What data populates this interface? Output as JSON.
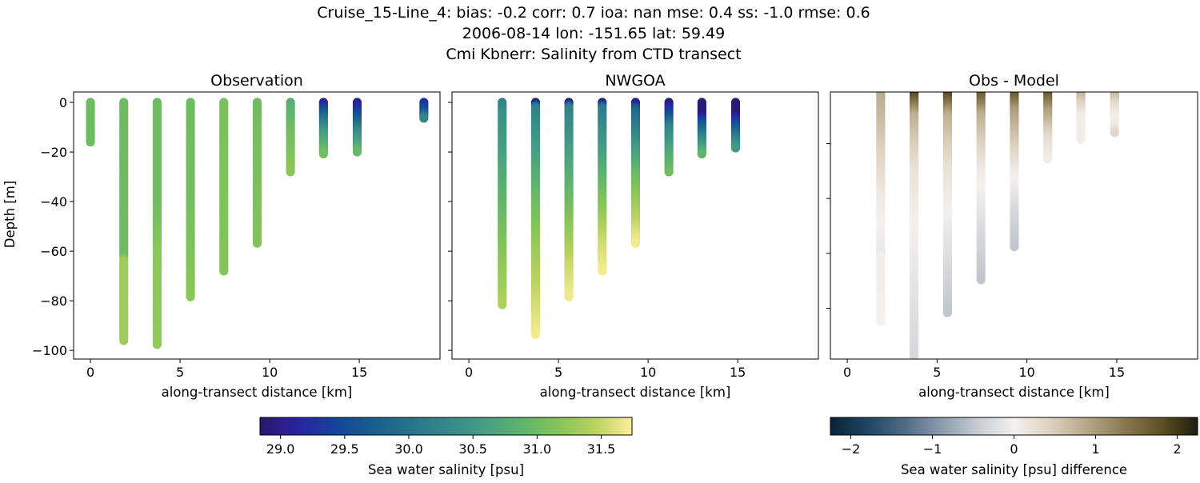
{
  "title_lines": [
    "Cruise_15-Line_4: bias: -0.2  corr: 0.7  ioa: nan  mse: 0.4  ss: -1.0  rmse: 0.6",
    "2006-08-14 lon: -151.65 lat: 59.49",
    "Cmi Kbnerr: Salinity from CTD transect"
  ],
  "chart_data": [
    {
      "type": "scatter",
      "title": "Observation",
      "xlabel": "along-transect distance [km]",
      "ylabel": "Depth [m]",
      "xlim": [
        -0.94,
        19.5
      ],
      "ylim": [
        -103.5,
        4.2
      ],
      "xticks": [
        0,
        5,
        10,
        15
      ],
      "yticks": [
        0,
        -20,
        -40,
        -60,
        -80,
        -100
      ],
      "show_ytick_labels": true,
      "colormap": "haline",
      "clim": [
        28.84,
        31.74
      ],
      "profiles": [
        {
          "x": 0.0,
          "depth_salinity": [
            [
              0,
              31.0
            ],
            [
              -16,
              31.0
            ]
          ]
        },
        {
          "x": 1.86,
          "depth_salinity": [
            [
              0,
              31.0
            ],
            [
              -62,
              31.0
            ],
            [
              -64,
              31.3
            ],
            [
              -96,
              31.3
            ]
          ]
        },
        {
          "x": 3.72,
          "depth_salinity": [
            [
              0,
              31.0
            ],
            [
              -40,
              31.0
            ],
            [
              -60,
              31.2
            ],
            [
              -98,
              31.25
            ]
          ]
        },
        {
          "x": 5.58,
          "depth_salinity": [
            [
              0,
              31.0
            ],
            [
              -40,
              31.05
            ],
            [
              -79,
              31.2
            ]
          ]
        },
        {
          "x": 7.44,
          "depth_salinity": [
            [
              0,
              31.1
            ],
            [
              -68,
              31.15
            ]
          ]
        },
        {
          "x": 9.3,
          "depth_salinity": [
            [
              0,
              31.0
            ],
            [
              -10,
              31.05
            ],
            [
              -57,
              31.15
            ]
          ]
        },
        {
          "x": 11.16,
          "depth_salinity": [
            [
              0,
              30.8
            ],
            [
              -10,
              31.0
            ],
            [
              -28,
              31.2
            ]
          ]
        },
        {
          "x": 13.0,
          "depth_salinity": [
            [
              0,
              29.0
            ],
            [
              -5,
              29.8
            ],
            [
              -12,
              30.5
            ],
            [
              -21,
              31.05
            ]
          ]
        },
        {
          "x": 14.88,
          "depth_salinity": [
            [
              0,
              29.0
            ],
            [
              -5,
              29.5
            ],
            [
              -12,
              30.3
            ],
            [
              -20,
              30.95
            ]
          ]
        },
        {
          "x": 18.6,
          "depth_salinity": [
            [
              0,
              29.2
            ],
            [
              -3,
              29.5
            ],
            [
              -6.5,
              30.3
            ]
          ]
        }
      ]
    },
    {
      "type": "scatter",
      "title": "NWGOA",
      "xlabel": "along-transect distance [km]",
      "xlim": [
        -0.94,
        19.5
      ],
      "ylim": [
        -103.5,
        4.2
      ],
      "xticks": [
        0,
        5,
        10,
        15
      ],
      "yticks": [
        0,
        -20,
        -40,
        -60,
        -80,
        -100
      ],
      "show_ytick_labels": false,
      "colormap": "haline",
      "clim": [
        28.84,
        31.74
      ],
      "profiles": [
        {
          "x": 1.86,
          "depth_salinity": [
            [
              0,
              30.2
            ],
            [
              -5,
              30.4
            ],
            [
              -20,
              30.6
            ],
            [
              -40,
              30.9
            ],
            [
              -55,
              31.1
            ],
            [
              -82,
              31.4
            ]
          ]
        },
        {
          "x": 3.72,
          "depth_salinity": [
            [
              0,
              28.9
            ],
            [
              -2,
              30.2
            ],
            [
              -20,
              30.6
            ],
            [
              -40,
              31.0
            ],
            [
              -60,
              31.3
            ],
            [
              -94,
              31.7
            ]
          ]
        },
        {
          "x": 5.58,
          "depth_salinity": [
            [
              0,
              28.9
            ],
            [
              -2,
              30.2
            ],
            [
              -20,
              30.6
            ],
            [
              -40,
              31.0
            ],
            [
              -65,
              31.5
            ],
            [
              -79,
              31.7
            ]
          ]
        },
        {
          "x": 7.44,
          "depth_salinity": [
            [
              0,
              28.9
            ],
            [
              -2,
              30.1
            ],
            [
              -20,
              30.6
            ],
            [
              -35,
              31.0
            ],
            [
              -55,
              31.5
            ],
            [
              -68,
              31.7
            ]
          ]
        },
        {
          "x": 9.3,
          "depth_salinity": [
            [
              0,
              28.9
            ],
            [
              -3,
              29.8
            ],
            [
              -18,
              30.5
            ],
            [
              -30,
              31.0
            ],
            [
              -45,
              31.4
            ],
            [
              -57,
              31.7
            ]
          ]
        },
        {
          "x": 11.16,
          "depth_salinity": [
            [
              0,
              28.9
            ],
            [
              -5,
              29.5
            ],
            [
              -10,
              30.2
            ],
            [
              -20,
              30.7
            ],
            [
              -28,
              31.0
            ]
          ]
        },
        {
          "x": 13.0,
          "depth_salinity": [
            [
              0,
              28.9
            ],
            [
              -5,
              28.9
            ],
            [
              -8,
              29.5
            ],
            [
              -14,
              30.2
            ],
            [
              -21,
              30.9
            ]
          ]
        },
        {
          "x": 14.88,
          "depth_salinity": [
            [
              0,
              28.9
            ],
            [
              -5,
              28.9
            ],
            [
              -8,
              29.4
            ],
            [
              -13,
              30.0
            ],
            [
              -19,
              30.6
            ]
          ]
        }
      ]
    },
    {
      "type": "scatter",
      "title": "Obs - Model",
      "xlabel": "along-transect distance [km]",
      "xlim": [
        -0.94,
        19.5
      ],
      "ylim": [
        -98.5,
        -1.2
      ],
      "xticks": [
        0,
        5,
        10,
        15
      ],
      "yticks": [
        -20,
        -40,
        -60,
        -80
      ],
      "show_ytick_labels": false,
      "colormap": "diff",
      "clim": [
        -2.25,
        2.25
      ],
      "profiles": [
        {
          "x": 1.86,
          "depth_salinity": [
            [
              0,
              0.9
            ],
            [
              -20,
              0.5
            ],
            [
              -40,
              0.1
            ],
            [
              -60,
              -0.1
            ],
            [
              -62,
              0.05
            ],
            [
              -85,
              0.0
            ]
          ]
        },
        {
          "x": 3.72,
          "depth_salinity": [
            [
              0,
              2.2
            ],
            [
              -10,
              0.8
            ],
            [
              -30,
              0.2
            ],
            [
              -50,
              0.0
            ],
            [
              -98,
              -0.3
            ]
          ]
        },
        {
          "x": 5.58,
          "depth_salinity": [
            [
              0,
              2.2
            ],
            [
              -10,
              0.8
            ],
            [
              -30,
              0.2
            ],
            [
              -60,
              -0.2
            ],
            [
              -82,
              -0.5
            ]
          ]
        },
        {
          "x": 7.44,
          "depth_salinity": [
            [
              0,
              2.0
            ],
            [
              -10,
              0.8
            ],
            [
              -30,
              0.1
            ],
            [
              -55,
              -0.3
            ],
            [
              -70,
              -0.5
            ]
          ]
        },
        {
          "x": 9.3,
          "depth_salinity": [
            [
              0,
              2.0
            ],
            [
              -8,
              1.0
            ],
            [
              -30,
              0.1
            ],
            [
              -45,
              -0.3
            ],
            [
              -58,
              -0.5
            ]
          ]
        },
        {
          "x": 11.16,
          "depth_salinity": [
            [
              0,
              2.0
            ],
            [
              -8,
              1.0
            ],
            [
              -18,
              0.3
            ],
            [
              -26,
              0.05
            ]
          ]
        },
        {
          "x": 13.0,
          "depth_salinity": [
            [
              0,
              1.0
            ],
            [
              -5,
              0.5
            ],
            [
              -10,
              0.05
            ],
            [
              -19,
              0.05
            ]
          ]
        },
        {
          "x": 14.88,
          "depth_salinity": [
            [
              0,
              1.0
            ],
            [
              -6,
              0.3
            ],
            [
              -10,
              0.05
            ],
            [
              -14,
              0.1
            ],
            [
              -16,
              0.35
            ]
          ]
        }
      ]
    }
  ],
  "colorbars": [
    {
      "label": "Sea water salinity [psu]",
      "colormap": "haline",
      "range": [
        28.84,
        31.74
      ],
      "ticks": [
        29.0,
        29.5,
        30.0,
        30.5,
        31.0,
        31.5
      ],
      "tick_labels": [
        "29.0",
        "29.5",
        "30.0",
        "30.5",
        "31.0",
        "31.5"
      ]
    },
    {
      "label": "Sea water salinity [psu] difference",
      "colormap": "diff",
      "range": [
        -2.25,
        2.25
      ],
      "ticks": [
        -2,
        -1,
        0,
        1,
        2
      ],
      "tick_labels": [
        "−2",
        "−1",
        "0",
        "1",
        "2"
      ]
    }
  ],
  "colormaps": {
    "haline": [
      "#2a186c",
      "#2a23a0",
      "#14439c",
      "#175d8e",
      "#26728b",
      "#358789",
      "#459d82",
      "#5db36d",
      "#84c45a",
      "#b9d25f",
      "#fdee99"
    ],
    "diff": [
      "#0b2239",
      "#1e4562",
      "#4d6a84",
      "#8a9aab",
      "#c6cbd1",
      "#f4f0ee",
      "#ddd1bf",
      "#b4a687",
      "#8a7950",
      "#5e5124",
      "#1c1d0c"
    ]
  }
}
